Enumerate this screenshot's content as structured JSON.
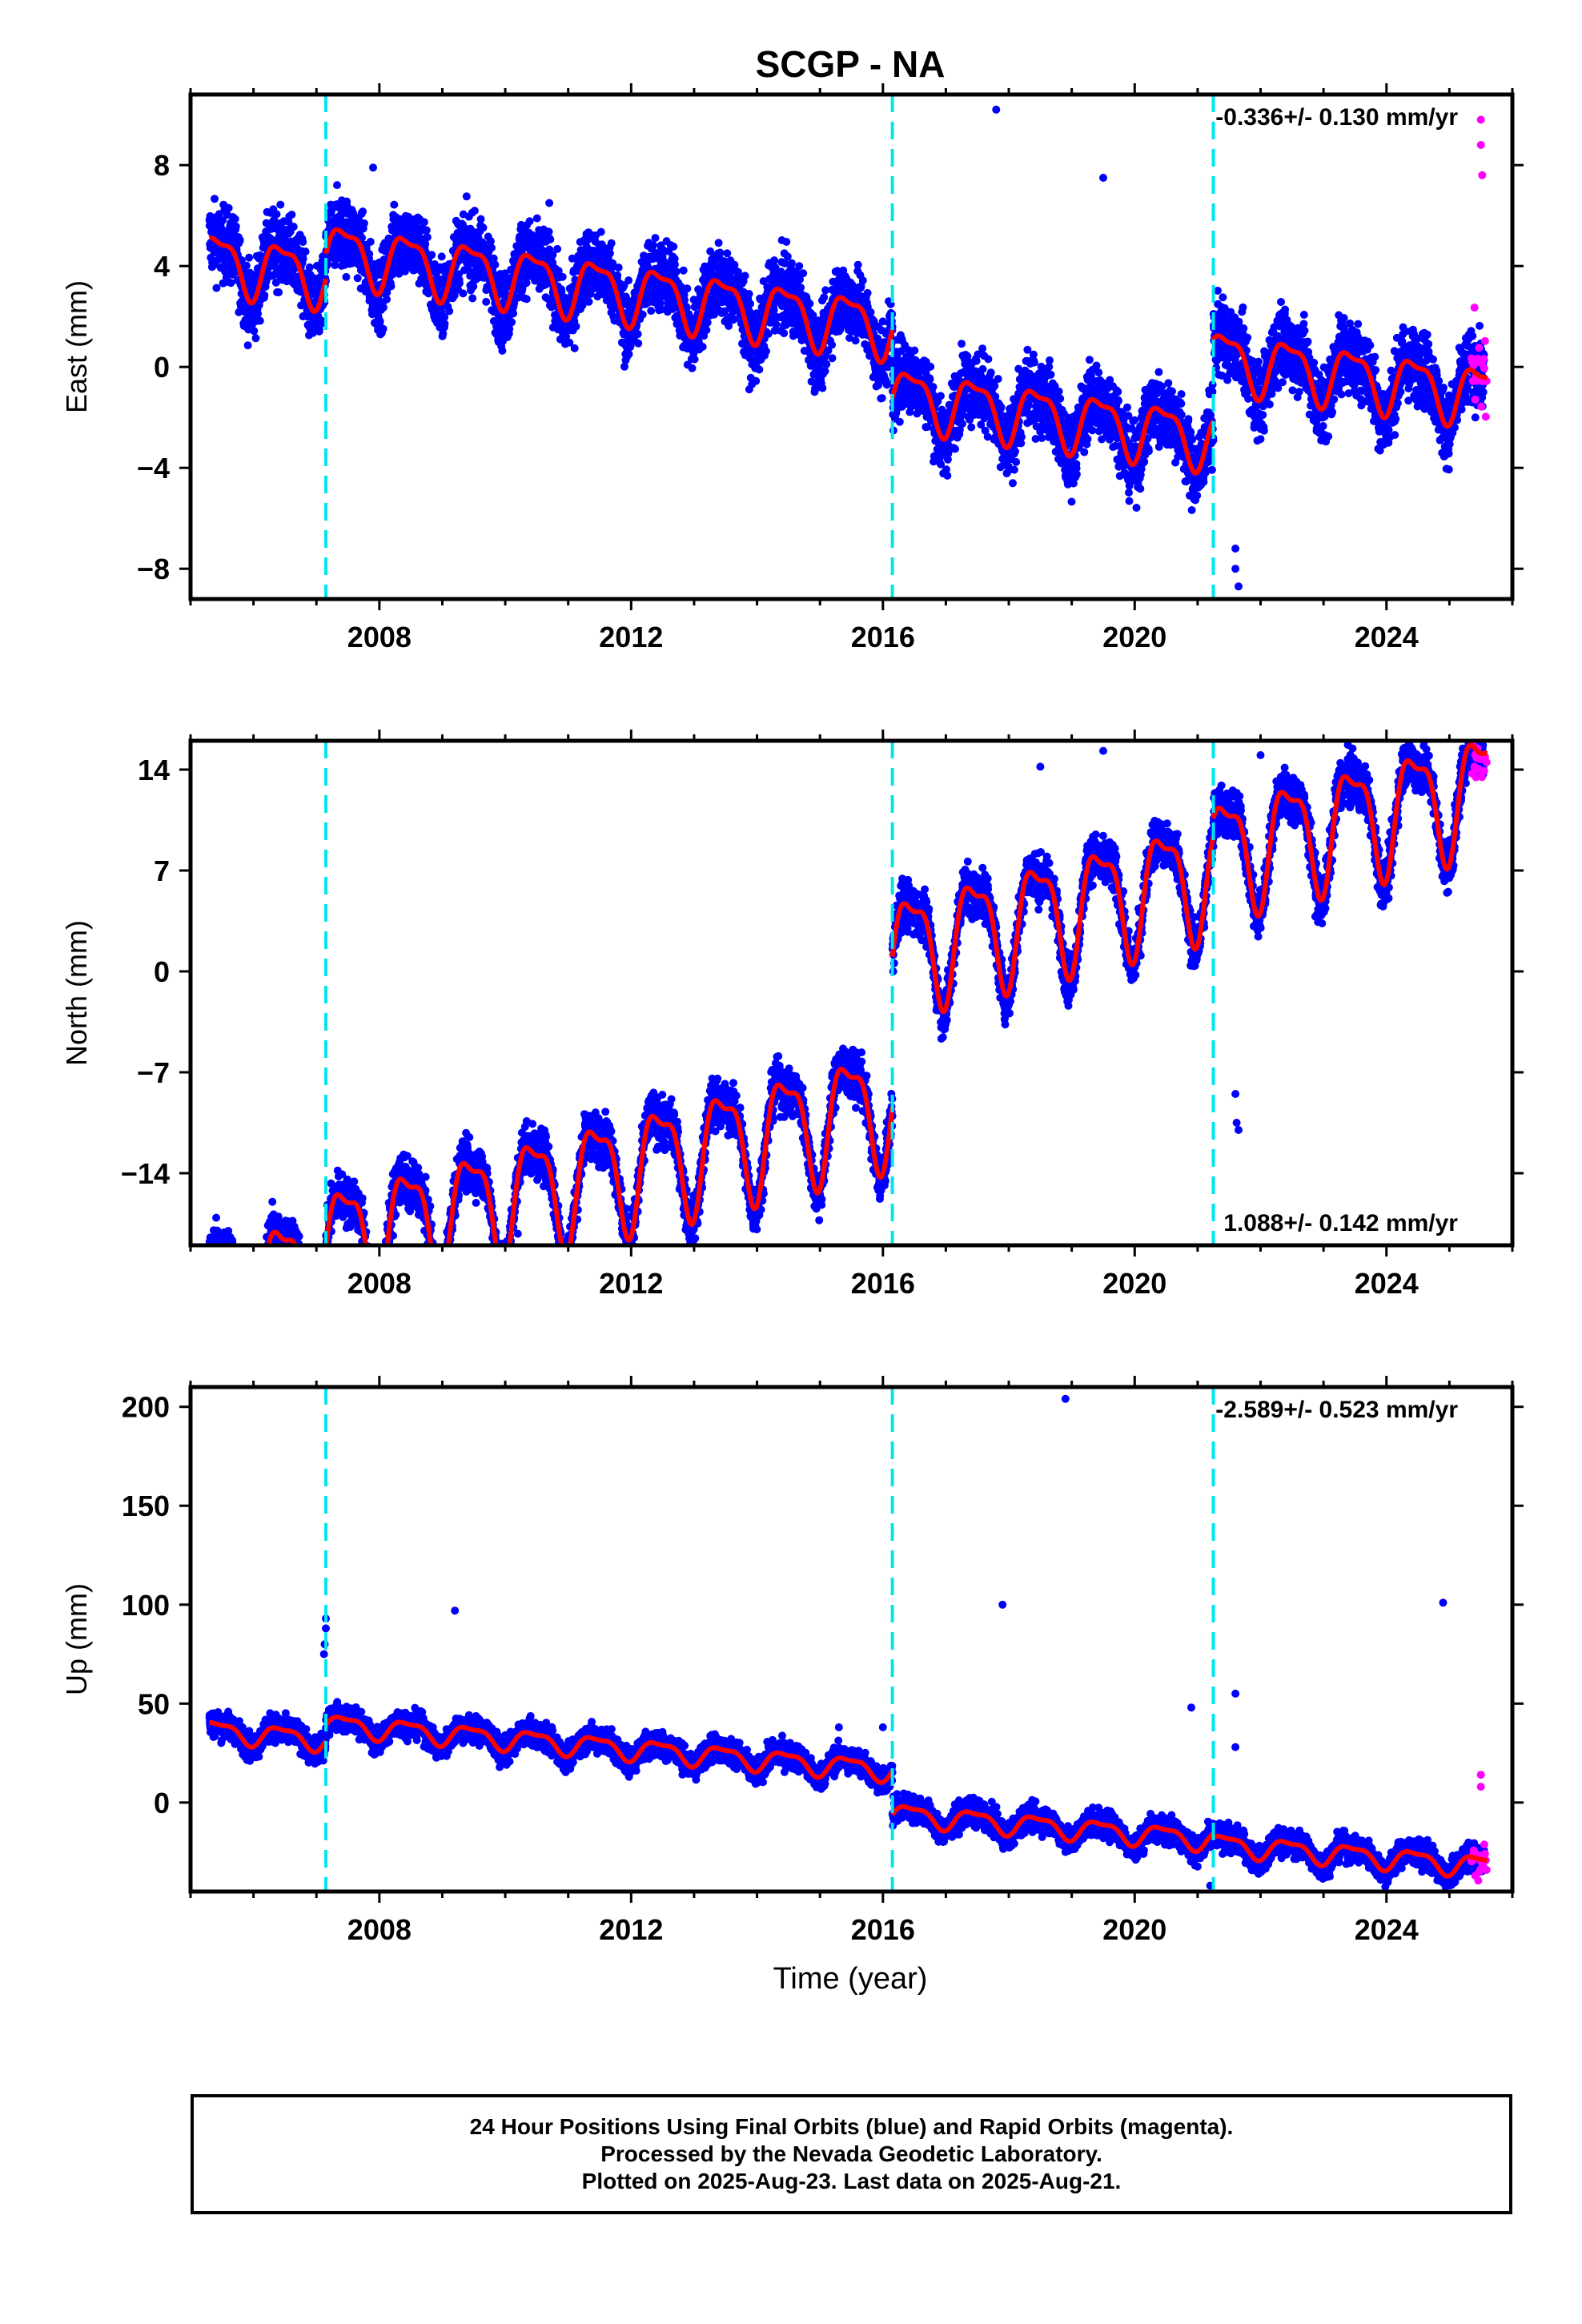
{
  "title": "SCGP - NA",
  "xlabel": "Time (year)",
  "caption": [
    "24 Hour Positions Using Final Orbits (blue) and Rapid Orbits (magenta).",
    "Processed by the Nevada Geodetic Laboratory.",
    "Plotted on 2025-Aug-23. Last data on 2025-Aug-21."
  ],
  "colors": {
    "final_orbits": "#0000ff",
    "rapid_orbits": "#ff00ff",
    "model_fit": "#ff0000",
    "step_lines": "#00e5ee"
  },
  "chart_data": [
    {
      "type": "scatter",
      "ylabel": "East (mm)",
      "rate_label": "-0.336+/- 0.130 mm/yr",
      "rate_position": "top-right",
      "xlim": [
        2005.0,
        2026.0
      ],
      "ylim": [
        -9.2,
        10.8
      ],
      "xticks": [
        2008,
        2012,
        2016,
        2020,
        2024
      ],
      "yticks": [
        8,
        4,
        0,
        -4,
        -8
      ],
      "ytick_labels": [
        "8",
        "4",
        "0",
        "−4",
        "−8"
      ],
      "step_lines": [
        2007.15,
        2016.15,
        2021.25
      ],
      "rate": -0.336,
      "series": [
        {
          "name": "Model fit",
          "style": "line",
          "color": "#ff0000",
          "segments": [
            {
              "start": 2005.3,
              "end": 2007.15,
              "offset": 0.8,
              "amp": 1.1
            },
            {
              "start": 2007.15,
              "end": 2016.15,
              "offset": 1.8,
              "amp": 1.1
            },
            {
              "start": 2016.15,
              "end": 2021.25,
              "offset": -0.9,
              "amp": 1.1
            },
            {
              "start": 2021.25,
              "end": 2025.6,
              "offset": 2.3,
              "amp": 1.1
            }
          ]
        }
      ],
      "data_points": {
        "from": 2005.3,
        "to": 2025.55,
        "noise": 1.3,
        "rapid_from": 2025.35,
        "rapid_to": 2025.6
      },
      "outliers": [
        [
          2007.9,
          7.9
        ],
        [
          2017.8,
          10.2
        ],
        [
          2019.5,
          7.5
        ],
        [
          2008.4,
          5.5
        ],
        [
          2010.7,
          6.5
        ],
        [
          2021.6,
          -7.2
        ],
        [
          2021.6,
          -8.0
        ],
        [
          2021.65,
          -8.7
        ],
        [
          2025.5,
          9.8
        ],
        [
          2025.5,
          8.8
        ],
        [
          2025.52,
          7.6
        ]
      ]
    },
    {
      "type": "scatter",
      "ylabel": "North (mm)",
      "rate_label": "1.088+/- 0.142 mm/yr",
      "rate_position": "bottom-right",
      "xlim": [
        2005.0,
        2026.0
      ],
      "ylim": [
        -19.0,
        16.0
      ],
      "xticks": [
        2008,
        2012,
        2016,
        2020,
        2024
      ],
      "yticks": [
        14,
        7,
        0,
        -7,
        -14
      ],
      "ytick_labels": [
        "14",
        "7",
        "0",
        "−7",
        "−14"
      ],
      "step_lines": [
        2007.15,
        2016.15,
        2021.25
      ],
      "rate": 1.088,
      "series": [
        {
          "name": "Model fit",
          "style": "line",
          "color": "#ff0000",
          "segments": [
            {
              "start": 2005.3,
              "end": 2007.15,
              "offset": -11.2,
              "amp": 3.8
            },
            {
              "start": 2007.15,
              "end": 2016.15,
              "offset": -9.7,
              "amp": 3.8
            },
            {
              "start": 2016.15,
              "end": 2021.25,
              "offset": 0.7,
              "amp": 3.8
            },
            {
              "start": 2021.25,
              "end": 2025.6,
              "offset": 1.9,
              "amp": 3.8
            }
          ]
        }
      ],
      "data_points": {
        "from": 2005.3,
        "to": 2025.55,
        "noise": 1.5,
        "rapid_from": 2025.35,
        "rapid_to": 2025.6
      },
      "outliers": [
        [
          2010.2,
          -18.2
        ],
        [
          2005.6,
          -18.0
        ],
        [
          2021.6,
          -8.5
        ],
        [
          2021.62,
          -10.5
        ],
        [
          2021.65,
          -11.0
        ],
        [
          2019.5,
          15.3
        ],
        [
          2022.0,
          15.0
        ],
        [
          2018.5,
          14.2
        ]
      ]
    },
    {
      "type": "scatter",
      "ylabel": "Up (mm)",
      "rate_label": "-2.589+/- 0.523 mm/yr",
      "rate_position": "top-right",
      "xlim": [
        2005.0,
        2026.0
      ],
      "ylim": [
        -45.0,
        210.0
      ],
      "xticks": [
        2008,
        2012,
        2016,
        2020,
        2024
      ],
      "yticks": [
        200,
        150,
        100,
        50,
        0
      ],
      "ytick_labels": [
        "200",
        "150",
        "100",
        "50",
        "0"
      ],
      "step_lines": [
        2007.15,
        2016.15,
        2021.25
      ],
      "rate": -2.589,
      "series": [
        {
          "name": "Model fit",
          "style": "line",
          "color": "#ff0000",
          "segments": [
            {
              "start": 2005.3,
              "end": 2007.15,
              "offset": 10.0,
              "amp": 5.0
            },
            {
              "start": 2007.15,
              "end": 2016.15,
              "offset": 18.0,
              "amp": 5.0
            },
            {
              "start": 2016.15,
              "end": 2021.25,
              "offset": -4.0,
              "amp": 5.0
            },
            {
              "start": 2021.25,
              "end": 2025.6,
              "offset": -6.0,
              "amp": 5.0
            }
          ]
        }
      ],
      "data_points": {
        "from": 2005.3,
        "to": 2025.55,
        "noise": 6.0,
        "rapid_from": 2025.35,
        "rapid_to": 2025.6
      },
      "outliers": [
        [
          2018.9,
          204
        ],
        [
          2007.15,
          93
        ],
        [
          2007.15,
          88
        ],
        [
          2007.13,
          80
        ],
        [
          2007.12,
          75
        ],
        [
          2009.2,
          97
        ],
        [
          2017.9,
          100
        ],
        [
          2024.9,
          101
        ],
        [
          2015.3,
          38
        ],
        [
          2016.0,
          38
        ],
        [
          2020.9,
          48
        ],
        [
          2021.6,
          55
        ],
        [
          2021.6,
          28
        ],
        [
          2021.2,
          -42
        ],
        [
          2025.5,
          14
        ],
        [
          2025.5,
          8
        ]
      ]
    }
  ]
}
